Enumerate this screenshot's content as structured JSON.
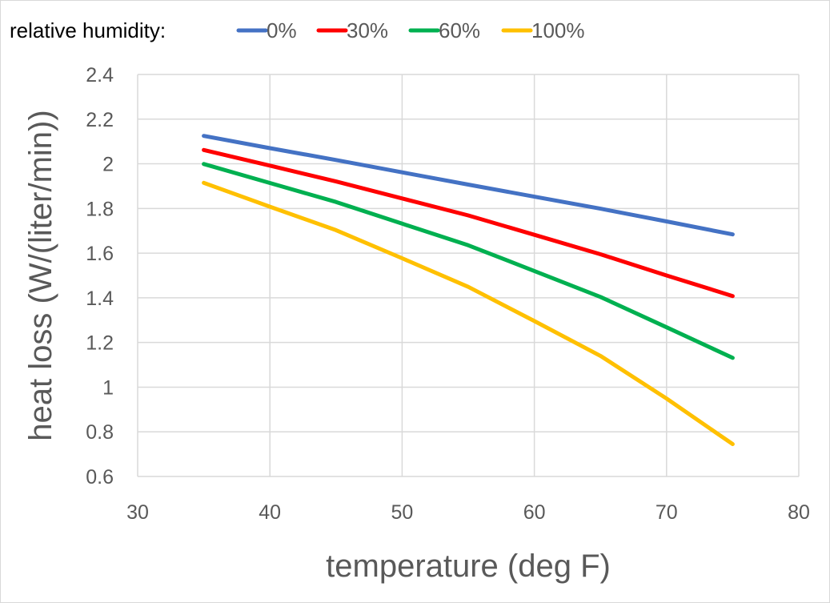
{
  "chart_data": {
    "type": "line",
    "title": "",
    "xlabel": "temperature (deg F)",
    "ylabel": "heat loss (W/(liter/min))",
    "xlim": [
      30,
      80
    ],
    "ylim": [
      0.6,
      2.4
    ],
    "xticks": [
      "30",
      "40",
      "50",
      "60",
      "70",
      "80"
    ],
    "yticks": [
      "0.6",
      "0.8",
      "1",
      "1.2",
      "1.4",
      "1.6",
      "1.8",
      "2",
      "2.2",
      "2.4"
    ],
    "grid": true,
    "legend": {
      "title": "relative humidity:",
      "placement": "top"
    },
    "x": [
      35,
      40,
      45,
      50,
      55,
      60,
      65,
      70,
      75
    ],
    "series": [
      {
        "name": "0%",
        "color": "#4472c4",
        "values": [
          2.125,
          2.07,
          2.017,
          1.962,
          1.907,
          1.853,
          1.799,
          1.742,
          1.684
        ]
      },
      {
        "name": "30%",
        "color": "#ff0000",
        "values": [
          2.062,
          1.992,
          1.921,
          1.845,
          1.769,
          1.682,
          1.595,
          1.5,
          1.408
        ]
      },
      {
        "name": "60%",
        "color": "#00b050",
        "values": [
          1.999,
          1.914,
          1.829,
          1.732,
          1.635,
          1.52,
          1.404,
          1.268,
          1.131
        ]
      },
      {
        "name": "100%",
        "color": "#ffc000",
        "values": [
          1.915,
          1.808,
          1.703,
          1.577,
          1.449,
          1.296,
          1.14,
          0.949,
          0.745
        ]
      }
    ]
  }
}
